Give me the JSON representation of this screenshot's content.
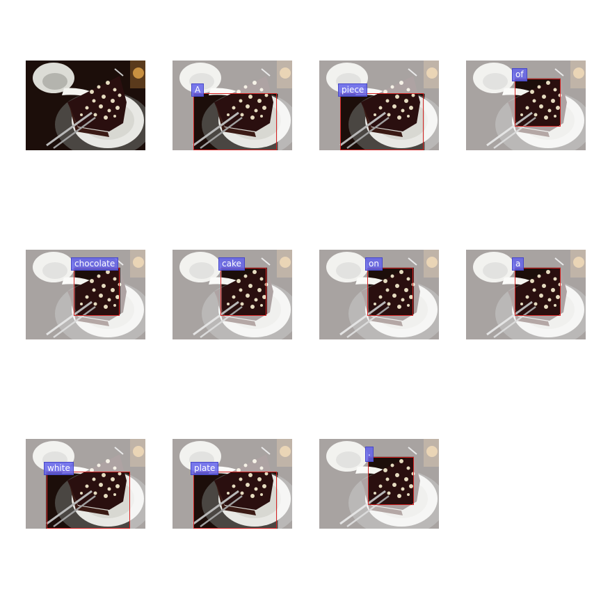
{
  "panels": [
    {
      "word": ""
    },
    {
      "word": "A"
    },
    {
      "word": "piece"
    },
    {
      "word": "of"
    },
    {
      "word": "chocolate"
    },
    {
      "word": "cake"
    },
    {
      "word": "on"
    },
    {
      "word": "a"
    },
    {
      "word": "white"
    },
    {
      "word": "plate"
    },
    {
      "word": "."
    }
  ],
  "colors": {
    "box": "#d42020",
    "tag": "#6464eb",
    "cake": "#2a0f0f",
    "plate": "#e8e8e4",
    "table": "#1c0e0a"
  }
}
